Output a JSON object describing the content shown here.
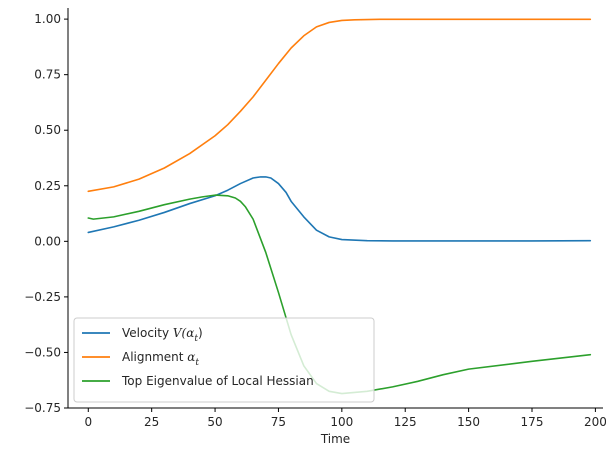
{
  "chart_data": {
    "type": "line",
    "xlabel": "Time",
    "ylabel": "",
    "title": "",
    "xlim": [
      -8,
      203
    ],
    "ylim": [
      -0.75,
      1.05
    ],
    "xticks": [
      0,
      25,
      50,
      75,
      100,
      125,
      150,
      175,
      200
    ],
    "yticks": [
      1.0,
      0.75,
      0.5,
      0.25,
      0.0,
      -0.25,
      -0.5,
      -0.75
    ],
    "ytick_labels": [
      "1.00",
      "0.75",
      "0.50",
      "0.25",
      "0.00",
      "−0.25",
      "−0.50",
      "−0.75"
    ],
    "legend_position": "lower-left",
    "series": [
      {
        "name_prefix": "Velocity ",
        "name_math": "V(α",
        "name_sub": "t",
        "name_suffix": ")",
        "color": "#1f77b4",
        "x": [
          0,
          10,
          20,
          30,
          40,
          50,
          55,
          60,
          65,
          68,
          70,
          72,
          75,
          78,
          80,
          85,
          90,
          95,
          100,
          110,
          120,
          150,
          175,
          198
        ],
        "y": [
          0.04,
          0.065,
          0.095,
          0.13,
          0.17,
          0.205,
          0.23,
          0.26,
          0.285,
          0.29,
          0.29,
          0.285,
          0.26,
          0.22,
          0.18,
          0.11,
          0.05,
          0.02,
          0.008,
          0.003,
          0.002,
          0.002,
          0.002,
          0.003
        ]
      },
      {
        "name_prefix": "Alignment ",
        "name_math": "α",
        "name_sub": "t",
        "name_suffix": "",
        "color": "#ff7f0e",
        "x": [
          0,
          10,
          20,
          30,
          40,
          50,
          55,
          60,
          65,
          70,
          75,
          80,
          85,
          90,
          95,
          100,
          105,
          110,
          115,
          120,
          130,
          150,
          175,
          198
        ],
        "y": [
          0.225,
          0.245,
          0.28,
          0.33,
          0.395,
          0.475,
          0.525,
          0.585,
          0.65,
          0.725,
          0.8,
          0.87,
          0.925,
          0.965,
          0.985,
          0.994,
          0.997,
          0.998,
          0.999,
          0.999,
          0.999,
          0.999,
          0.999,
          0.999
        ]
      },
      {
        "name_prefix": "Top Eigenvalue of Local Hessian",
        "name_math": "",
        "name_sub": "",
        "name_suffix": "",
        "color": "#2ca02c",
        "x": [
          0,
          2,
          10,
          20,
          30,
          40,
          45,
          50,
          55,
          58,
          60,
          62,
          65,
          70,
          75,
          80,
          85,
          90,
          95,
          100,
          110,
          120,
          130,
          140,
          150,
          175,
          198
        ],
        "y": [
          0.105,
          0.1,
          0.11,
          0.135,
          0.165,
          0.19,
          0.2,
          0.208,
          0.205,
          0.195,
          0.18,
          0.155,
          0.1,
          -0.05,
          -0.23,
          -0.42,
          -0.56,
          -0.64,
          -0.675,
          -0.685,
          -0.675,
          -0.655,
          -0.63,
          -0.6,
          -0.575,
          -0.54,
          -0.51
        ]
      }
    ]
  }
}
